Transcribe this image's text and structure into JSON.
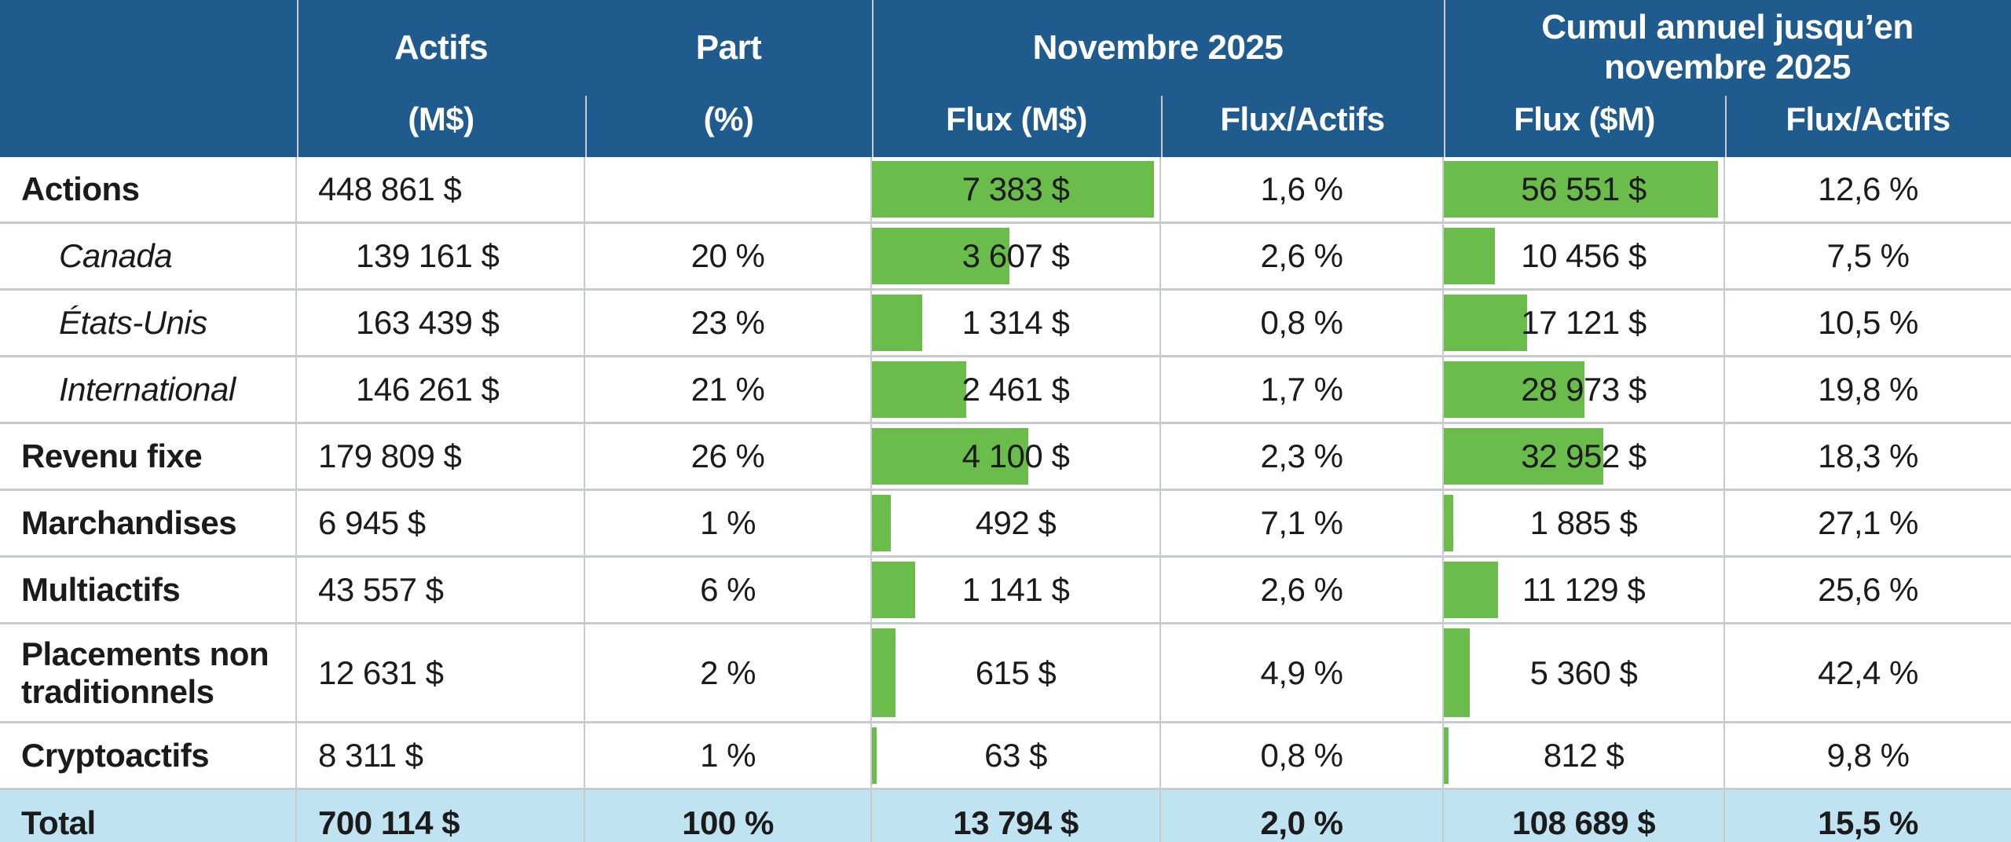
{
  "colors": {
    "header_bg": "#1f5c8d",
    "header_text": "#ffffff",
    "total_row_bg": "#bfe3f0",
    "bar_green": "#6abd4a",
    "gridline_gray": "#c7cbcd",
    "body_text": "#1b1b1b"
  },
  "header": {
    "corner": "",
    "groups": {
      "actifs": "Actifs",
      "part": "Part",
      "nov": "Novembre 2025",
      "ytd": "Cumul annuel jusqu’en novembre 2025"
    },
    "subheaders": {
      "actifs_unit": "(M$)",
      "part_unit": "(%)",
      "nov_flux": "Flux (M$)",
      "nov_ratio": "Flux/Actifs",
      "ytd_flux": "Flux ($M)",
      "ytd_ratio": "Flux/Actifs"
    }
  },
  "chart_data": {
    "type": "table",
    "title": "",
    "bar_scale": {
      "nov_max": 7383,
      "ytd_max": 56551
    },
    "legend": "green bars embedded in flux cells are proportional to flux values",
    "rows": [
      {
        "label": "Actions",
        "indent": false,
        "actifs": "448 861 $",
        "part": "",
        "flux_nov": "7 383 $",
        "flux_nov_value": 7383,
        "ratio_nov": "1,6 %",
        "flux_ytd": "56 551 $",
        "flux_ytd_value": 56551,
        "ratio_ytd": "12,6 %"
      },
      {
        "label": "Canada",
        "indent": true,
        "actifs": "139 161 $",
        "part": "20 %",
        "flux_nov": "3 607 $",
        "flux_nov_value": 3607,
        "ratio_nov": "2,6 %",
        "flux_ytd": "10 456 $",
        "flux_ytd_value": 10456,
        "ratio_ytd": "7,5 %"
      },
      {
        "label": "États-Unis",
        "indent": true,
        "actifs": "163 439 $",
        "part": "23 %",
        "flux_nov": "1 314 $",
        "flux_nov_value": 1314,
        "ratio_nov": "0,8 %",
        "flux_ytd": "17 121 $",
        "flux_ytd_value": 17121,
        "ratio_ytd": "10,5 %"
      },
      {
        "label": "International",
        "indent": true,
        "actifs": "146 261 $",
        "part": "21 %",
        "flux_nov": "2 461 $",
        "flux_nov_value": 2461,
        "ratio_nov": "1,7 %",
        "flux_ytd": "28 973 $",
        "flux_ytd_value": 28973,
        "ratio_ytd": "19,8 %"
      },
      {
        "label": "Revenu fixe",
        "indent": false,
        "actifs": "179 809 $",
        "part": "26 %",
        "flux_nov": "4 100 $",
        "flux_nov_value": 4100,
        "ratio_nov": "2,3 %",
        "flux_ytd": "32 952 $",
        "flux_ytd_value": 32952,
        "ratio_ytd": "18,3 %"
      },
      {
        "label": "Marchandises",
        "indent": false,
        "actifs": "6 945 $",
        "part": "1 %",
        "flux_nov": "492 $",
        "flux_nov_value": 492,
        "ratio_nov": "7,1 %",
        "flux_ytd": "1 885 $",
        "flux_ytd_value": 1885,
        "ratio_ytd": "27,1 %"
      },
      {
        "label": "Multiactifs",
        "indent": false,
        "actifs": "43 557 $",
        "part": "6 %",
        "flux_nov": "1 141 $",
        "flux_nov_value": 1141,
        "ratio_nov": "2,6 %",
        "flux_ytd": "11 129 $",
        "flux_ytd_value": 11129,
        "ratio_ytd": "25,6 %"
      },
      {
        "label": "Placements non traditionnels",
        "indent": false,
        "actifs": "12 631 $",
        "part": "2 %",
        "flux_nov": "615 $",
        "flux_nov_value": 615,
        "ratio_nov": "4,9 %",
        "flux_ytd": "5 360 $",
        "flux_ytd_value": 5360,
        "ratio_ytd": "42,4 %"
      },
      {
        "label": "Cryptoactifs",
        "indent": false,
        "actifs": "8 311 $",
        "part": "1 %",
        "flux_nov": "63 $",
        "flux_nov_value": 63,
        "ratio_nov": "0,8 %",
        "flux_ytd": "812 $",
        "flux_ytd_value": 812,
        "ratio_ytd": "9,8 %"
      }
    ],
    "total": {
      "label": "Total",
      "actifs": "700 114 $",
      "part": "100 %",
      "flux_nov": "13 794 $",
      "ratio_nov": "2,0 %",
      "flux_ytd": "108 689 $",
      "ratio_ytd": "15,5 %"
    }
  }
}
